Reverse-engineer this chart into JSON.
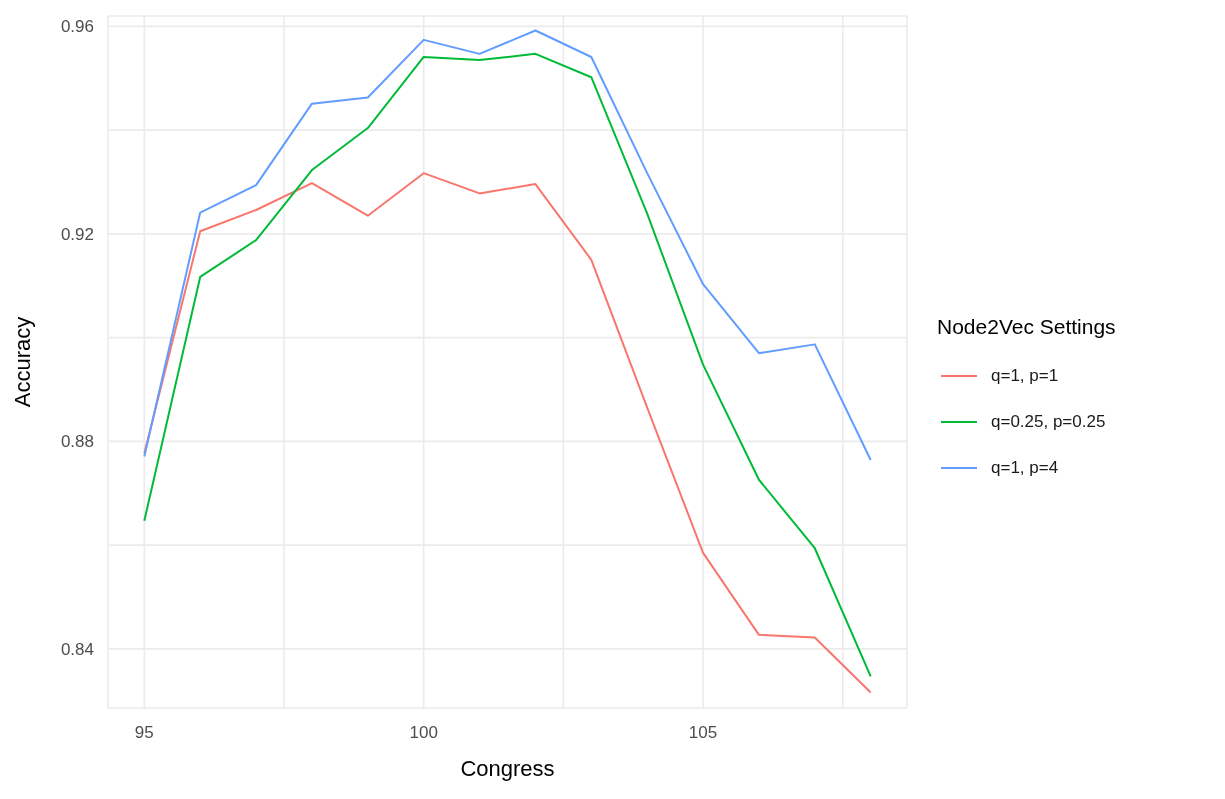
{
  "chart_data": {
    "type": "line",
    "xlabel": "Congress",
    "ylabel": "Accuracy",
    "legend_title": "Node2Vec Settings",
    "legend": "right",
    "grid": true,
    "marker": "none",
    "line_style": "solid",
    "x": [
      95,
      96,
      97,
      98,
      99,
      100,
      101,
      102,
      103,
      104,
      105,
      106,
      107,
      108
    ],
    "xlim": [
      94.35,
      108.65
    ],
    "xticks": [
      95,
      {
        "value": 97.5,
        "label": null
      },
      100,
      {
        "value": 102.5,
        "label": null
      },
      105,
      {
        "value": 107.5,
        "label": null
      }
    ],
    "ylim": [
      0.8286,
      0.962
    ],
    "yticks": [
      0.84,
      {
        "value": 0.86,
        "label": null
      },
      0.88,
      {
        "value": 0.9,
        "label": null
      },
      0.92,
      {
        "value": 0.94,
        "label": null
      },
      0.96
    ],
    "series": [
      {
        "name": "q=1, p=1",
        "color": "#f8766d",
        "values": [
          0.8777,
          0.9205,
          0.9246,
          0.9298,
          0.9235,
          0.9317,
          0.9278,
          0.9296,
          0.915,
          0.8865,
          0.8585,
          0.8427,
          0.8422,
          0.8316
        ]
      },
      {
        "name": "q=0.25, p=0.25",
        "color": "#00ba38",
        "values": [
          0.8647,
          0.9117,
          0.9188,
          0.9323,
          0.9404,
          0.9541,
          0.9535,
          0.9547,
          0.9502,
          0.9239,
          0.8948,
          0.8726,
          0.8594,
          0.8347
        ]
      },
      {
        "name": "q=1, p=4",
        "color": "#619cff",
        "values": [
          0.8771,
          0.9241,
          0.9294,
          0.9451,
          0.9463,
          0.9574,
          0.9547,
          0.9592,
          0.9541,
          0.9317,
          0.9103,
          0.897,
          0.8987,
          0.8764
        ]
      }
    ]
  }
}
